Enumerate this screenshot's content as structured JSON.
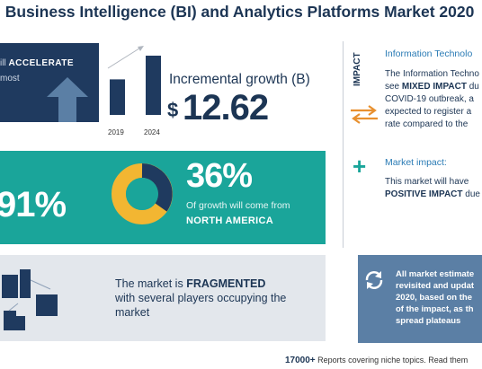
{
  "title": "l Business Intelligence (BI) and Analytics Platforms Market 2020",
  "top_left": {
    "accelerate_prefix": "ill",
    "accelerate_word": "ACCELERATE",
    "most": "most"
  },
  "chart_data": {
    "type": "bar",
    "categories": [
      "2019",
      "2024"
    ],
    "values": [
      0.6,
      1.0
    ],
    "title": "",
    "xlabel": "",
    "ylabel": ""
  },
  "incremental": {
    "label": "Incremental growth (B)",
    "currency": "$",
    "value": "12.62"
  },
  "teal": {
    "left_pct": "91%",
    "na_pct": "36%",
    "growth_from": "Of growth will come from",
    "region": "NORTH AMERICA"
  },
  "fragmented": {
    "line1_prefix": "The market is ",
    "line1_bold": "FRAGMENTED",
    "line2": "with several players occupying the",
    "line3": "market"
  },
  "impact": {
    "vertical": "IMPACT",
    "label": "Information Technolo",
    "line1": "The Information Techno",
    "line2_prefix": "see ",
    "line2_bold": "MIXED IMPACT",
    "line2_suffix": " du",
    "line3": "COVID-19 outbreak, a",
    "line4": "expected to register a",
    "line5": "rate compared to the"
  },
  "market_impact": {
    "label": "Market impact:",
    "line1": "This market will have",
    "line2_bold": "POSITIVE IMPACT",
    "line2_suffix": " due"
  },
  "estimate": {
    "line1": "All market estimate",
    "line2": "revisited and updat",
    "line3": "2020, based on the",
    "line4": "of the impact, as th",
    "line5": "spread plateaus"
  },
  "footer": {
    "bold": "17000+",
    "text": " Reports covering niche topics. Read them"
  },
  "colors": {
    "navy": "#1f3a5f",
    "teal": "#1aa59a",
    "link_blue": "#2a7bb5",
    "orange": "#e8902f"
  }
}
